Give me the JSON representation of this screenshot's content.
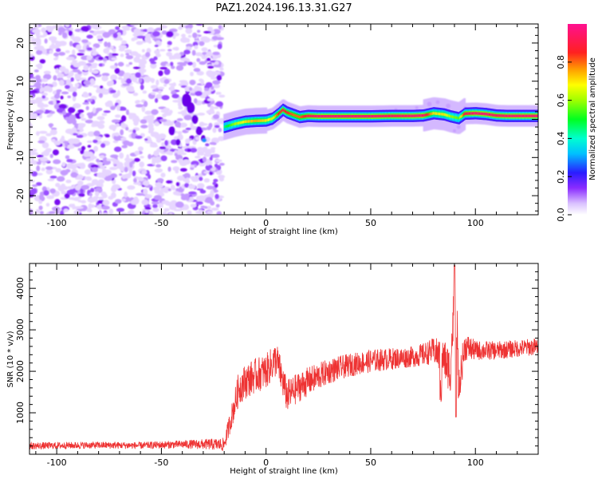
{
  "title": "PAZ1.2024.196.13.31.G27",
  "chart_data": [
    {
      "type": "heatmap",
      "xlabel": "Height of straight line (km)",
      "ylabel": "Frequency (Hz)",
      "xlim": [
        -113,
        130
      ],
      "ylim": [
        -25,
        25
      ],
      "x_ticks": [
        "-100",
        "-50",
        "0",
        "50",
        "100"
      ],
      "x_tick_values": [
        -100,
        -50,
        0,
        50,
        100
      ],
      "y_ticks": [
        "20",
        "10",
        "0",
        "-10",
        "-20"
      ],
      "y_tick_values": [
        20,
        10,
        0,
        -10,
        -20
      ],
      "colorbar": {
        "label": "Normalized spectral amplitude",
        "range": [
          0,
          1
        ],
        "ticks": [
          "0.0",
          "0.2",
          "0.4",
          "0.6",
          "0.8"
        ],
        "tick_values": [
          0.0,
          0.2,
          0.4,
          0.6,
          0.8
        ],
        "colormap": "white-purple-blue-cyan-green-yellow-orange-red-magenta"
      },
      "noise_region_x": [
        -113,
        -21
      ],
      "tone_ridge": {
        "x": [
          -20,
          -15,
          -10,
          -5,
          0,
          3,
          6,
          8,
          10,
          13,
          16,
          20,
          25,
          30,
          40,
          50,
          60,
          70,
          75,
          80,
          85,
          88,
          92,
          95,
          100,
          105,
          110,
          115,
          120,
          125,
          130
        ],
        "frequency": [
          -2,
          -1.2,
          -0.6,
          -0.4,
          -0.3,
          0.2,
          1.5,
          2.5,
          1.8,
          1.2,
          0.6,
          0.9,
          0.8,
          0.8,
          0.8,
          0.8,
          0.9,
          0.9,
          1.0,
          1.6,
          1.3,
          0.8,
          0.3,
          1.5,
          1.6,
          1.4,
          1.0,
          0.9,
          0.9,
          0.9,
          0.9
        ],
        "amplitude": [
          0.45,
          0.6,
          0.7,
          0.75,
          0.7,
          0.65,
          0.85,
          0.9,
          0.85,
          0.8,
          0.8,
          0.9,
          0.95,
          0.95,
          0.95,
          0.95,
          0.93,
          0.95,
          0.95,
          0.7,
          0.7,
          0.6,
          0.55,
          0.9,
          0.95,
          0.95,
          0.92,
          0.95,
          0.95,
          0.95,
          0.95
        ]
      }
    },
    {
      "type": "line",
      "xlabel": "Height of straight line (km)",
      "ylabel": "SNR (10 * v/v)",
      "xlim": [
        -113,
        130
      ],
      "ylim": [
        0,
        4600
      ],
      "x_ticks": [
        "-100",
        "-50",
        "0",
        "50",
        "100"
      ],
      "x_tick_values": [
        -100,
        -50,
        0,
        50,
        100
      ],
      "y_ticks": [
        "1000",
        "2000",
        "3000",
        "4000"
      ],
      "y_tick_values": [
        1000,
        2000,
        3000,
        4000
      ],
      "series": [
        {
          "color": "#ee3333",
          "x": [
            -113,
            -100,
            -80,
            -60,
            -40,
            -25,
            -20,
            -15,
            -13,
            -10,
            -5,
            0,
            5,
            10,
            15,
            20,
            30,
            40,
            50,
            60,
            70,
            75,
            80,
            85,
            88,
            90,
            92,
            95,
            100,
            110,
            120,
            130
          ],
          "y": [
            200,
            210,
            220,
            210,
            240,
            240,
            230,
            1200,
            1600,
            1750,
            1900,
            2000,
            2300,
            1400,
            1600,
            1750,
            2000,
            2150,
            2250,
            2300,
            2350,
            2400,
            2500,
            2300,
            2000,
            3800,
            1700,
            2600,
            2500,
            2500,
            2550,
            2600
          ],
          "noise_amplitude": [
            60,
            60,
            60,
            60,
            70,
            100,
            120,
            250,
            300,
            300,
            300,
            300,
            300,
            280,
            260,
            250,
            220,
            200,
            200,
            190,
            180,
            200,
            220,
            350,
            400,
            450,
            400,
            250,
            170,
            160,
            150,
            150
          ]
        }
      ]
    }
  ]
}
